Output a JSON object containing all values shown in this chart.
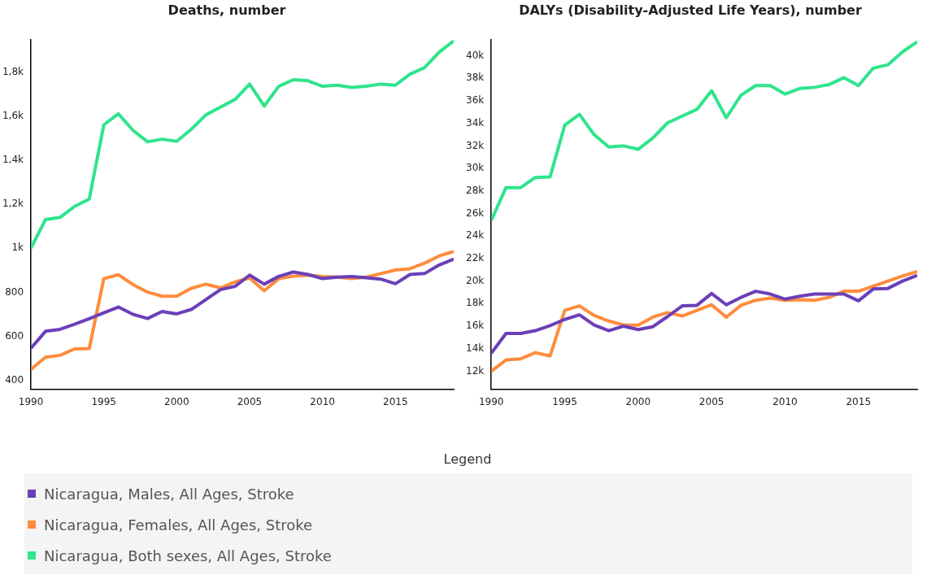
{
  "chart_data": [
    {
      "type": "line",
      "title": "Deaths, number",
      "x": [
        1990,
        1991,
        1992,
        1993,
        1994,
        1995,
        1996,
        1997,
        1998,
        1999,
        2000,
        2001,
        2002,
        2003,
        2004,
        2005,
        2006,
        2007,
        2008,
        2009,
        2010,
        2011,
        2012,
        2013,
        2014,
        2015,
        2016,
        2017,
        2018,
        2019
      ],
      "xlim": [
        1990,
        2019
      ],
      "xticks": [
        1990,
        1995,
        2000,
        2005,
        2010,
        2015
      ],
      "ylim": [
        360,
        1945
      ],
      "yticks": [
        400,
        600,
        800,
        {
          "value": 1000,
          "label": "1k"
        },
        {
          "value": 1200,
          "label": "1,2k"
        },
        {
          "value": 1400,
          "label": "1,4k"
        },
        {
          "value": 1600,
          "label": "1,6k"
        },
        {
          "value": 1800,
          "label": "1,8k"
        }
      ],
      "grid": false,
      "legend": "bottom",
      "legend_title": "Legend",
      "line_style": "solid",
      "marker": "none",
      "series": [
        {
          "name": "Nicaragua, Males, All Ages, Stroke",
          "color": "#6b3fb8",
          "values": [
            546,
            623,
            632,
            655,
            680,
            707,
            733,
            700,
            681,
            713,
            702,
            722,
            767,
            812,
            827,
            878,
            837,
            872,
            892,
            881,
            862,
            869,
            872,
            866,
            860,
            839,
            881,
            885,
            924,
            951
          ]
        },
        {
          "name": "Nicaragua, Females, All Ages, Stroke",
          "color": "#ff8c3c",
          "values": [
            450,
            505,
            514,
            543,
            545,
            862,
            880,
            835,
            801,
            782,
            782,
            818,
            837,
            820,
            847,
            865,
            807,
            862,
            873,
            878,
            872,
            869,
            862,
            869,
            885,
            901,
            907,
            932,
            965,
            985
          ]
        },
        {
          "name": "Nicaragua, Both sexes, All Ages, Stroke",
          "color": "#2fe48c",
          "values": [
            1000,
            1130,
            1140,
            1190,
            1223,
            1560,
            1610,
            1535,
            1483,
            1495,
            1485,
            1540,
            1605,
            1640,
            1675,
            1745,
            1645,
            1735,
            1765,
            1760,
            1735,
            1740,
            1730,
            1735,
            1745,
            1740,
            1790,
            1820,
            1890,
            1941
          ]
        }
      ]
    },
    {
      "type": "line",
      "title": "DALYs (Disability-Adjusted Life Years), number",
      "x": [
        1990,
        1991,
        1992,
        1993,
        1994,
        1995,
        1996,
        1997,
        1998,
        1999,
        2000,
        2001,
        2002,
        2003,
        2004,
        2005,
        2006,
        2007,
        2008,
        2009,
        2010,
        2011,
        2012,
        2013,
        2014,
        2015,
        2016,
        2017,
        2018,
        2019
      ],
      "xlim": [
        1990,
        2019
      ],
      "xticks": [
        1990,
        1995,
        2000,
        2005,
        2010,
        2015
      ],
      "ylim": [
        10400,
        41400
      ],
      "yticks": [
        {
          "value": 12000,
          "label": "12k"
        },
        {
          "value": 14000,
          "label": "14k"
        },
        {
          "value": 16000,
          "label": "16k"
        },
        {
          "value": 18000,
          "label": "18k"
        },
        {
          "value": 20000,
          "label": "20k"
        },
        {
          "value": 22000,
          "label": "22k"
        },
        {
          "value": 24000,
          "label": "24k"
        },
        {
          "value": 26000,
          "label": "26k"
        },
        {
          "value": 28000,
          "label": "28k"
        },
        {
          "value": 30000,
          "label": "30k"
        },
        {
          "value": 32000,
          "label": "32k"
        },
        {
          "value": 34000,
          "label": "34k"
        },
        {
          "value": 36000,
          "label": "36k"
        },
        {
          "value": 38000,
          "label": "38k"
        },
        {
          "value": 40000,
          "label": "40k"
        }
      ],
      "grid": false,
      "line_style": "solid",
      "marker": "none",
      "series": [
        {
          "color": "#6b3fb8",
          "values": [
            13600,
            15350,
            15350,
            15600,
            16050,
            16600,
            17000,
            16100,
            15600,
            16000,
            15700,
            15950,
            16850,
            17800,
            17850,
            18900,
            17900,
            18550,
            19100,
            18850,
            18400,
            18650,
            18850,
            18850,
            18850,
            18250,
            19300,
            19350,
            20000,
            20500
          ]
        },
        {
          "color": "#ff8c3c",
          "values": [
            12000,
            13000,
            13100,
            13650,
            13350,
            17400,
            17800,
            16950,
            16450,
            16100,
            16100,
            16800,
            17200,
            16900,
            17400,
            17900,
            16800,
            17850,
            18300,
            18500,
            18300,
            18350,
            18300,
            18550,
            19100,
            19100,
            19550,
            20000,
            20450,
            20850
          ]
        },
        {
          "color": "#2fe48c",
          "values": [
            25400,
            28300,
            28300,
            29200,
            29250,
            33850,
            34800,
            33000,
            31900,
            32000,
            31700,
            32700,
            34050,
            34650,
            35250,
            36900,
            34500,
            36500,
            37350,
            37350,
            36600,
            37100,
            37200,
            37450,
            38050,
            37350,
            38900,
            39200,
            40350,
            41250
          ]
        }
      ]
    }
  ]
}
